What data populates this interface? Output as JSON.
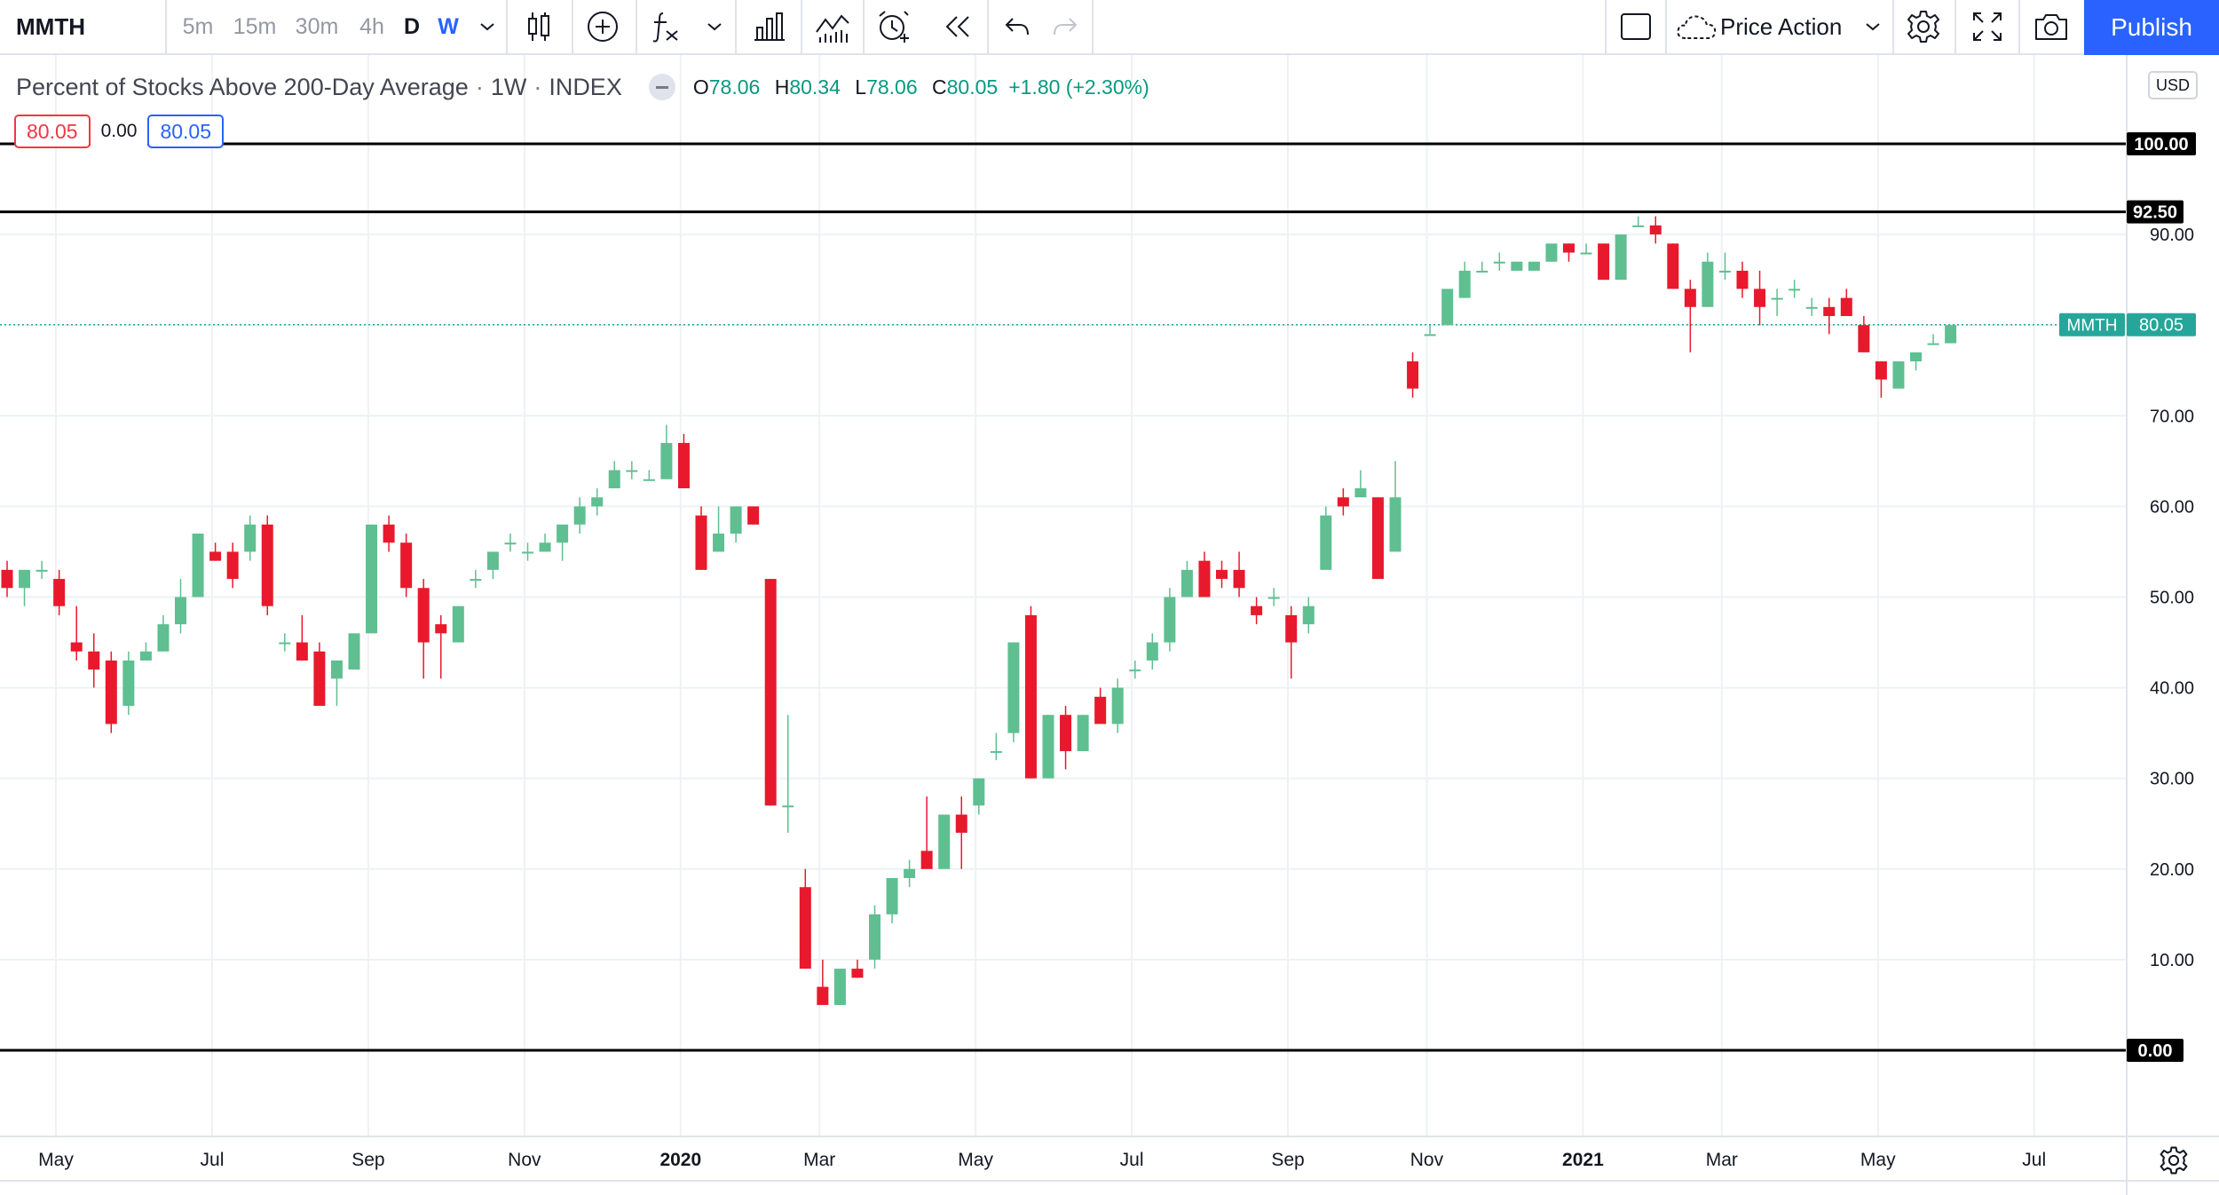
{
  "toolbar": {
    "symbol": "MMTH",
    "intervals": [
      "5m",
      "15m",
      "30m",
      "4h",
      "D",
      "W"
    ],
    "selected_interval": "W",
    "template_label": "Price Action",
    "publish_label": "Publish"
  },
  "legend": {
    "title": "Percent of Stocks Above 200-Day Average",
    "interval": "1W",
    "exchange": "INDEX",
    "sep": "·",
    "open_key": "O",
    "open": "78.06",
    "high_key": "H",
    "high": "80.34",
    "low_key": "L",
    "low": "78.06",
    "close_key": "C",
    "close": "80.05",
    "change": "+1.80 (+2.30%)",
    "bid": "80.05",
    "spread": "0.00",
    "ask": "80.05"
  },
  "price_scale": {
    "currency": "USD",
    "ticks": [
      "0.00",
      "10.00",
      "20.00",
      "30.00",
      "40.00",
      "50.00",
      "60.00",
      "70.00",
      "80.00",
      "90.00"
    ],
    "tick_values": [
      0,
      10,
      20,
      30,
      40,
      50,
      60,
      70,
      80,
      90
    ],
    "horizontal_lines": [
      {
        "value": 100,
        "label": "100.00"
      },
      {
        "value": 92.5,
        "label": "92.50"
      },
      {
        "value": 0,
        "label": "0.00"
      }
    ],
    "last_price": {
      "value": 80.05,
      "symbol": "MMTH",
      "label": "80.05"
    }
  },
  "time_scale": {
    "labels": [
      {
        "text": "May",
        "week": 0,
        "bold": false
      },
      {
        "text": "Jul",
        "week": 9,
        "bold": false
      },
      {
        "text": "Sep",
        "week": 18,
        "bold": false
      },
      {
        "text": "Nov",
        "week": 27,
        "bold": false
      },
      {
        "text": "2020",
        "week": 36,
        "bold": true
      },
      {
        "text": "Mar",
        "week": 44,
        "bold": false
      },
      {
        "text": "May",
        "week": 53,
        "bold": false
      },
      {
        "text": "Jul",
        "week": 62,
        "bold": false
      },
      {
        "text": "Sep",
        "week": 71,
        "bold": false
      },
      {
        "text": "Nov",
        "week": 79,
        "bold": false
      },
      {
        "text": "2021",
        "week": 88,
        "bold": true
      },
      {
        "text": "Mar",
        "week": 96,
        "bold": false
      },
      {
        "text": "May",
        "week": 105,
        "bold": false
      },
      {
        "text": "Jul",
        "week": 114,
        "bold": false
      }
    ]
  },
  "colors": {
    "up": "#089981",
    "up_fill": "#5fbf91",
    "down": "#f23645",
    "down_fill": "#e8192c",
    "grid": "#eef1f6",
    "accent": "#2962ff",
    "last_price": "#26a69a"
  },
  "chart_data": {
    "type": "candlestick",
    "x_unit": "week index (week 0 = first week of May 2019)",
    "ylim": [
      -9.4,
      102
    ],
    "candles": [
      [
        53,
        54,
        50,
        51
      ],
      [
        51,
        53,
        49,
        53
      ],
      [
        53,
        54,
        52,
        53
      ],
      [
        52,
        53,
        48,
        49
      ],
      [
        45,
        49,
        43,
        44
      ],
      [
        44,
        46,
        40,
        42
      ],
      [
        43,
        44,
        35,
        36
      ],
      [
        38,
        44,
        37,
        43
      ],
      [
        43,
        45,
        43,
        44
      ],
      [
        44,
        48,
        44,
        47
      ],
      [
        47,
        52,
        46,
        50
      ],
      [
        50,
        57,
        50,
        57
      ],
      [
        55,
        56,
        54,
        54
      ],
      [
        55,
        56,
        51,
        52
      ],
      [
        55,
        59,
        54,
        58
      ],
      [
        58,
        59,
        48,
        49
      ],
      [
        45,
        46,
        44,
        45
      ],
      [
        45,
        48,
        43,
        43
      ],
      [
        44,
        45,
        38,
        38
      ],
      [
        41,
        43,
        38,
        43
      ],
      [
        42,
        46,
        42,
        46
      ],
      [
        46,
        58,
        46,
        58
      ],
      [
        58,
        59,
        55,
        56
      ],
      [
        56,
        57,
        50,
        51
      ],
      [
        51,
        52,
        41,
        45
      ],
      [
        47,
        48,
        41,
        46
      ],
      [
        45,
        49,
        45,
        49
      ],
      [
        52,
        53,
        51,
        52
      ],
      [
        53,
        55,
        52,
        55
      ],
      [
        56,
        57,
        55,
        56
      ],
      [
        55,
        56,
        54,
        55
      ],
      [
        55,
        57,
        55,
        56
      ],
      [
        56,
        58,
        54,
        58
      ],
      [
        58,
        61,
        57,
        60
      ],
      [
        60,
        62,
        59,
        61
      ],
      [
        62,
        65,
        62,
        64
      ],
      [
        64,
        65,
        63,
        64
      ],
      [
        63,
        64,
        63,
        63
      ],
      [
        63,
        69,
        63,
        67
      ],
      [
        67,
        68,
        62,
        62
      ],
      [
        59,
        60,
        53,
        53
      ],
      [
        55,
        60,
        55,
        57
      ],
      [
        57,
        60,
        56,
        60
      ],
      [
        60,
        60,
        58,
        58
      ],
      [
        52,
        52,
        27,
        27
      ],
      [
        27,
        37,
        24,
        27
      ],
      [
        18,
        20,
        9,
        9
      ],
      [
        7,
        10,
        5,
        5
      ],
      [
        5,
        9,
        5,
        9
      ],
      [
        9,
        10,
        8,
        8
      ],
      [
        10,
        16,
        9,
        15
      ],
      [
        15,
        19,
        14,
        19
      ],
      [
        19,
        21,
        18,
        20
      ],
      [
        22,
        28,
        21,
        20
      ],
      [
        20,
        26,
        20,
        26
      ],
      [
        26,
        28,
        20,
        24
      ],
      [
        27,
        30,
        26,
        30
      ],
      [
        33,
        35,
        32,
        33
      ],
      [
        35,
        45,
        34,
        45
      ],
      [
        48,
        49,
        30,
        30
      ],
      [
        30,
        37,
        30,
        37
      ],
      [
        37,
        38,
        31,
        33
      ],
      [
        33,
        37,
        33,
        37
      ],
      [
        39,
        40,
        36,
        36
      ],
      [
        36,
        41,
        35,
        40
      ],
      [
        42,
        43,
        41,
        42
      ],
      [
        43,
        46,
        42,
        45
      ],
      [
        45,
        51,
        44,
        50
      ],
      [
        50,
        54,
        50,
        53
      ],
      [
        54,
        55,
        50,
        50
      ],
      [
        53,
        54,
        51,
        52
      ],
      [
        53,
        55,
        50,
        51
      ],
      [
        49,
        50,
        47,
        48
      ],
      [
        50,
        51,
        49,
        50
      ],
      [
        48,
        49,
        41,
        45
      ],
      [
        47,
        50,
        46,
        49
      ],
      [
        53,
        60,
        53,
        59
      ],
      [
        61,
        62,
        59,
        60
      ],
      [
        61,
        64,
        61,
        62
      ],
      [
        61,
        61,
        52,
        52
      ],
      [
        55,
        65,
        55,
        61
      ],
      [
        76,
        77,
        72,
        73
      ],
      [
        79,
        80,
        79,
        79
      ],
      [
        80,
        83,
        80,
        84
      ],
      [
        83,
        87,
        83,
        86
      ],
      [
        86,
        87,
        86,
        86
      ],
      [
        87,
        88,
        86,
        87
      ],
      [
        86,
        87,
        86,
        87
      ],
      [
        86,
        87,
        86,
        87
      ],
      [
        87,
        88,
        87,
        89
      ],
      [
        89,
        89,
        87,
        88
      ],
      [
        88,
        89,
        88,
        88
      ],
      [
        89,
        89,
        85,
        85
      ],
      [
        85,
        90,
        85,
        90
      ],
      [
        91,
        92,
        91,
        91
      ],
      [
        91,
        92,
        89,
        90
      ],
      [
        89,
        89,
        84,
        84
      ],
      [
        84,
        85,
        77,
        82
      ],
      [
        82,
        88,
        82,
        87
      ],
      [
        86,
        88,
        85,
        86
      ],
      [
        86,
        87,
        83,
        84
      ],
      [
        84,
        86,
        80,
        82
      ],
      [
        83,
        84,
        81,
        83
      ],
      [
        84,
        85,
        83,
        84
      ],
      [
        82,
        83,
        81,
        82
      ],
      [
        82,
        83,
        79,
        81
      ],
      [
        83,
        84,
        81,
        81
      ],
      [
        80,
        81,
        77,
        77
      ],
      [
        76,
        76,
        72,
        74
      ],
      [
        73,
        76,
        73,
        76
      ],
      [
        76,
        77,
        75,
        77
      ],
      [
        78,
        79,
        78,
        78
      ],
      [
        78,
        80,
        78,
        80
      ]
    ]
  }
}
